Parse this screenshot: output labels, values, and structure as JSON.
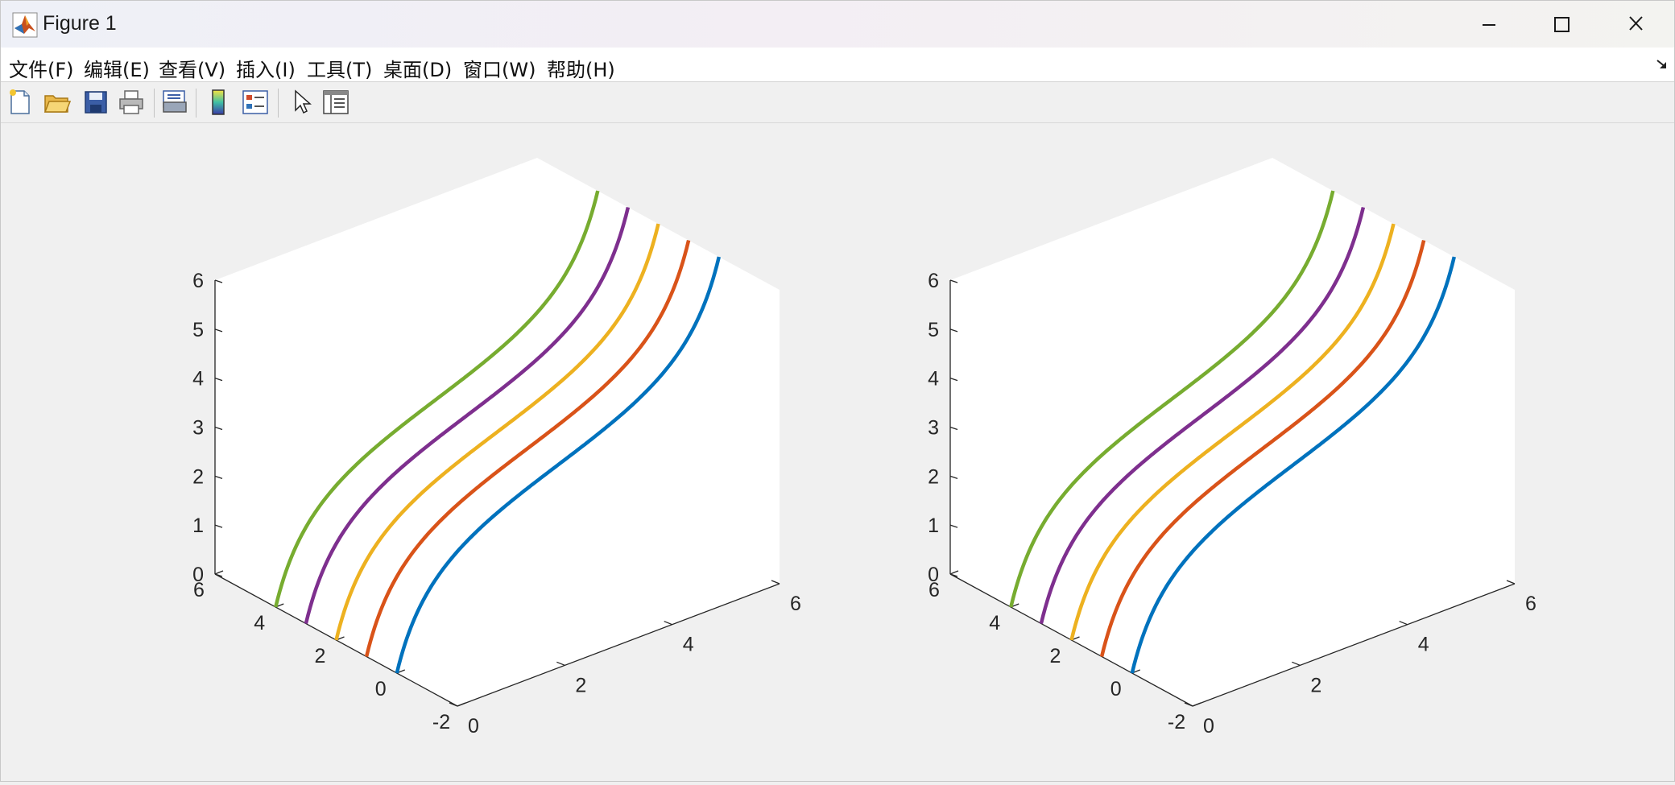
{
  "window": {
    "title": "Figure 1",
    "controls": [
      "minimize",
      "maximize",
      "close"
    ]
  },
  "menu": {
    "items": [
      "文件(F)",
      "编辑(E)",
      "查看(V)",
      "插入(I)",
      "工具(T)",
      "桌面(D)",
      "窗口(W)",
      "帮助(H)"
    ]
  },
  "toolbar": {
    "buttons": [
      "new-figure",
      "open-file",
      "save-figure",
      "print-figure",
      "print-preview",
      "insert-colorbar",
      "insert-legend",
      "edit-plot",
      "open-property-inspector"
    ]
  },
  "chart_data": [
    {
      "type": "line3d",
      "xlim": [
        0,
        6
      ],
      "ylim": [
        -2,
        6
      ],
      "zlim": [
        0,
        6
      ],
      "xticks": [
        "0",
        "2",
        "4",
        "6"
      ],
      "yticks": [
        "-2",
        "0",
        "2",
        "4",
        "6"
      ],
      "zticks": [
        "0",
        "1",
        "2",
        "3",
        "4",
        "5",
        "6"
      ],
      "grid": false,
      "series": [
        {
          "y": 0,
          "color": "#0072BD"
        },
        {
          "y": 1,
          "color": "#D95319"
        },
        {
          "y": 2,
          "color": "#EDB120"
        },
        {
          "y": 3,
          "color": "#7E2F8E"
        },
        {
          "y": 4,
          "color": "#77AC30"
        }
      ]
    },
    {
      "type": "line3d",
      "xlim": [
        0,
        6
      ],
      "ylim": [
        -2,
        6
      ],
      "zlim": [
        0,
        6
      ],
      "xticks": [
        "0",
        "2",
        "4",
        "6"
      ],
      "yticks": [
        "-2",
        "0",
        "2",
        "4",
        "6"
      ],
      "zticks": [
        "0",
        "1",
        "2",
        "3",
        "4",
        "5",
        "6"
      ],
      "grid": false,
      "series": [
        {
          "y": 0,
          "color": "#0072BD"
        },
        {
          "y": 1,
          "color": "#D95319"
        },
        {
          "y": 2,
          "color": "#EDB120"
        },
        {
          "y": 3,
          "color": "#7E2F8E"
        },
        {
          "y": 4,
          "color": "#77AC30"
        }
      ]
    }
  ]
}
